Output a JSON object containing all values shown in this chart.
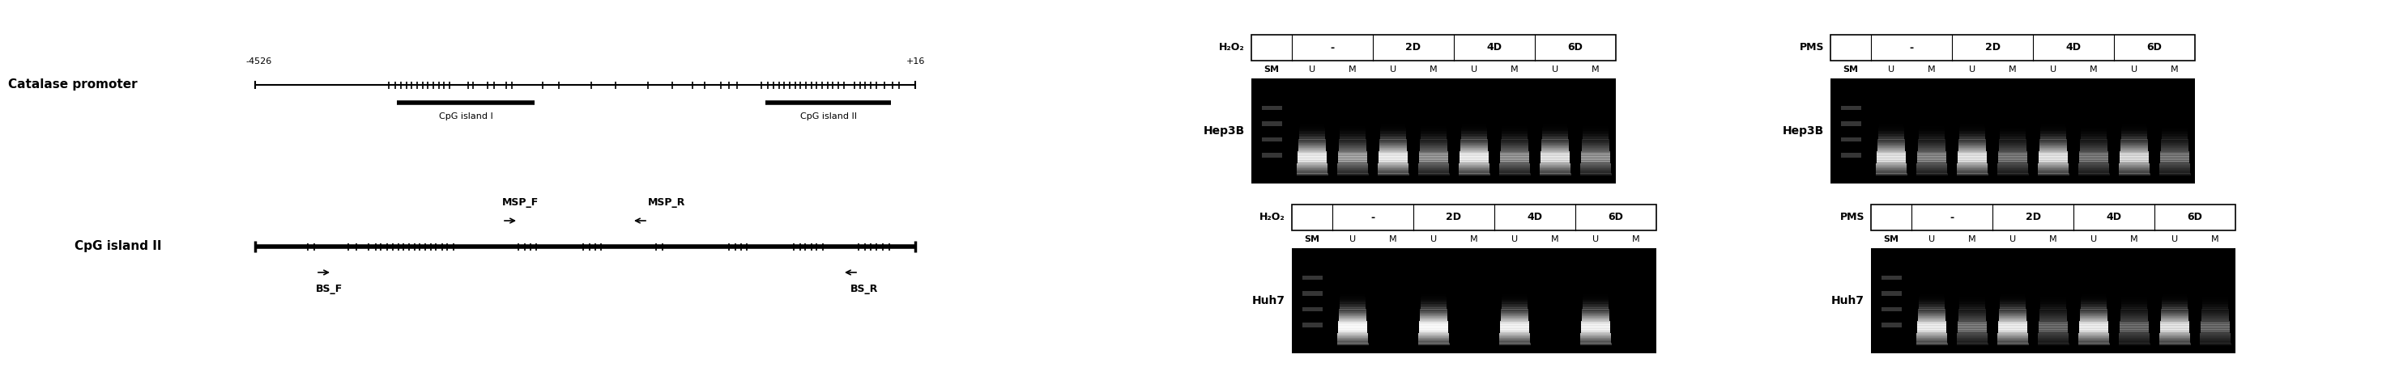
{
  "fig_width": 29.57,
  "fig_height": 4.75,
  "bg_color": "#ffffff",
  "black": "#000000",
  "promoter_label": "Catalase promoter",
  "left_label": "-4526",
  "right_label": "+16",
  "cpg1_label": "CpG island I",
  "cpg2_label": "CpG island II",
  "cpgII_label": "CpG island II",
  "mspf_label": "MSP_F",
  "mspr_label": "MSP_R",
  "bsf_label": "BS_F",
  "bsr_label": "BS_R",
  "conditions": [
    "-",
    "2D",
    "4D",
    "6D"
  ],
  "lane_labels": [
    "SM",
    "U",
    "M",
    "U",
    "M",
    "U",
    "M",
    "U",
    "M"
  ],
  "cell1": "Hep3B",
  "cell2": "Huh7",
  "h2o2_hep3b_bands": {
    "lanes": [
      1,
      2,
      3,
      4,
      5,
      6,
      7,
      8
    ],
    "intensities": [
      0.85,
      0.5,
      0.85,
      0.45,
      0.85,
      0.45,
      0.8,
      0.45
    ],
    "sm_lane": true
  },
  "h2o2_huh7_bands": {
    "lanes": [
      1,
      2,
      3,
      4,
      5,
      6,
      7,
      8
    ],
    "intensities": [
      0.95,
      0.0,
      0.95,
      0.0,
      0.9,
      0.0,
      0.9,
      0.0
    ],
    "sm_lane": true
  },
  "pms_hep3b_bands": {
    "lanes": [
      1,
      2,
      3,
      4,
      5,
      6,
      7,
      8
    ],
    "intensities": [
      0.8,
      0.4,
      0.8,
      0.35,
      0.8,
      0.35,
      0.75,
      0.35
    ],
    "sm_lane": true
  },
  "pms_huh7_bands": {
    "lanes": [
      1,
      2,
      3,
      4,
      5,
      6,
      7,
      8
    ],
    "intensities": [
      0.85,
      0.35,
      0.85,
      0.3,
      0.85,
      0.3,
      0.8,
      0.3
    ],
    "sm_lane": true
  }
}
